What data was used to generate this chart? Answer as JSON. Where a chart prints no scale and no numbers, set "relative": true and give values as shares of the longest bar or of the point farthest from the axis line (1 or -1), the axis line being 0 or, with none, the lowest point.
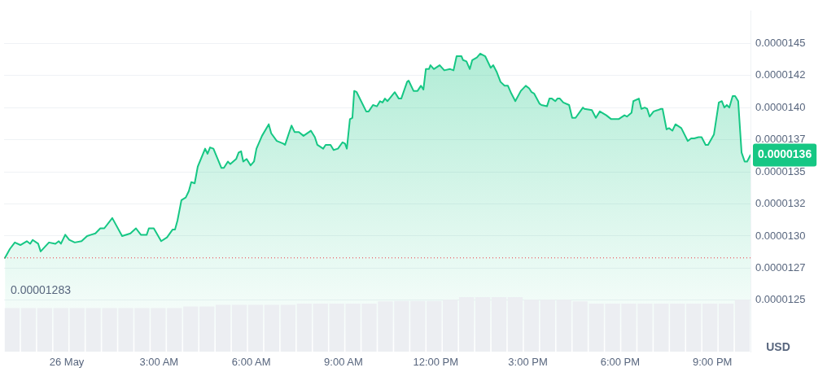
{
  "chart_data": [
    {
      "type": "area",
      "ylabel": "USD",
      "grid": "y",
      "marker": "none",
      "x": [
        -2.01,
        -1.85,
        -1.69,
        -1.51,
        -1.3,
        -1.19,
        -1.11,
        -0.93,
        -0.85,
        -0.58,
        -0.37,
        -0.26,
        -0.19,
        -0.05,
        0.08,
        0.26,
        0.48,
        0.66,
        0.79,
        0.93,
        1.09,
        1.22,
        1.48,
        1.8,
        2.07,
        2.25,
        2.41,
        2.6,
        2.67,
        2.83,
        3.07,
        3.26,
        3.44,
        3.52,
        3.6,
        3.73,
        3.87,
        3.97,
        4.05,
        4.16,
        4.26,
        4.5,
        4.58,
        4.66,
        4.77,
        5.03,
        5.11,
        5.24,
        5.32,
        5.51,
        5.59,
        5.67,
        5.74,
        5.85,
        5.98,
        6.09,
        6.17,
        6.35,
        6.57,
        6.65,
        6.83,
        7.04,
        7.1,
        7.31,
        7.41,
        7.55,
        7.7,
        7.94,
        8.07,
        8.15,
        8.34,
        8.42,
        8.58,
        8.68,
        8.82,
        8.97,
        9.05,
        9.11,
        9.21,
        9.29,
        9.35,
        9.43,
        9.74,
        9.82,
        9.96,
        10.09,
        10.19,
        10.27,
        10.35,
        10.43,
        10.67,
        10.8,
        10.88,
        11.07,
        11.12,
        11.28,
        11.41,
        11.52,
        11.6,
        11.68,
        11.78,
        11.83,
        11.94,
        12.13,
        12.28,
        12.47,
        12.58,
        12.68,
        12.84,
        12.89,
        13.0,
        13.11,
        13.19,
        13.34,
        13.45,
        13.61,
        13.79,
        13.87,
        13.98,
        14.11,
        14.24,
        14.35,
        14.46,
        14.59,
        14.77,
        14.93,
        15.04,
        15.12,
        15.2,
        15.38,
        15.44,
        15.62,
        15.7,
        15.78,
        15.89,
        15.96,
        16.04,
        16.15,
        16.34,
        16.44,
        16.55,
        16.79,
        16.84,
        17.08,
        17.21,
        17.34,
        17.55,
        17.71,
        17.95,
        18.14,
        18.22,
        18.37,
        18.43,
        18.61,
        18.69,
        18.8,
        18.88,
        18.96,
        19.09,
        19.22,
        19.33,
        19.38,
        19.51,
        19.59,
        19.7,
        19.8,
        19.99,
        20.2,
        20.31,
        20.41,
        20.55,
        20.65,
        20.78,
        20.86,
        21.05,
        21.21,
        21.31,
        21.39,
        21.47,
        21.55,
        21.66,
        21.74,
        21.84,
        21.95,
        22.05,
        22.13,
        22.24
      ],
      "series": [
        {
          "color": "#16c784",
          "values": [
            1.283e-05,
            1.29e-05,
            1.295e-05,
            1.293e-05,
            1.296e-05,
            1.294e-05,
            1.297e-05,
            1.294e-05,
            1.288e-05,
            1.295e-05,
            1.294e-05,
            1.296e-05,
            1.294e-05,
            1.301e-05,
            1.297e-05,
            1.295e-05,
            1.296e-05,
            1.3e-05,
            1.301e-05,
            1.302e-05,
            1.306e-05,
            1.306e-05,
            1.314e-05,
            1.3e-05,
            1.302e-05,
            1.306e-05,
            1.301e-05,
            1.301e-05,
            1.306e-05,
            1.306e-05,
            1.296e-05,
            1.299e-05,
            1.305e-05,
            1.305e-05,
            1.312e-05,
            1.328e-05,
            1.33e-05,
            1.335e-05,
            1.342e-05,
            1.341e-05,
            1.354e-05,
            1.368e-05,
            1.364e-05,
            1.369e-05,
            1.368e-05,
            1.353e-05,
            1.353e-05,
            1.358e-05,
            1.356e-05,
            1.36e-05,
            1.365e-05,
            1.366e-05,
            1.358e-05,
            1.36e-05,
            1.355e-05,
            1.358e-05,
            1.368e-05,
            1.378e-05,
            1.387e-05,
            1.38e-05,
            1.374e-05,
            1.372e-05,
            1.371e-05,
            1.386e-05,
            1.381e-05,
            1.381e-05,
            1.378e-05,
            1.382e-05,
            1.377e-05,
            1.371e-05,
            1.368e-05,
            1.371e-05,
            1.371e-05,
            1.367e-05,
            1.368e-05,
            1.373e-05,
            1.372e-05,
            1.368e-05,
            1.391e-05,
            1.392e-05,
            1.413e-05,
            1.412e-05,
            1.397e-05,
            1.397e-05,
            1.402e-05,
            1.401e-05,
            1.405e-05,
            1.404e-05,
            1.407e-05,
            1.405e-05,
            1.412e-05,
            1.407e-05,
            1.407e-05,
            1.42e-05,
            1.421e-05,
            1.413e-05,
            1.413e-05,
            1.417e-05,
            1.414e-05,
            1.43e-05,
            1.43e-05,
            1.433e-05,
            1.43e-05,
            1.433e-05,
            1.429e-05,
            1.43e-05,
            1.429e-05,
            1.44e-05,
            1.44e-05,
            1.437e-05,
            1.436e-05,
            1.43e-05,
            1.437e-05,
            1.439e-05,
            1.442e-05,
            1.44e-05,
            1.431e-05,
            1.433e-05,
            1.428e-05,
            1.42e-05,
            1.417e-05,
            1.417e-05,
            1.411e-05,
            1.405e-05,
            1.413e-05,
            1.417e-05,
            1.415e-05,
            1.412e-05,
            1.411e-05,
            1.403e-05,
            1.402e-05,
            1.401e-05,
            1.407e-05,
            1.407e-05,
            1.405e-05,
            1.407e-05,
            1.407e-05,
            1.404e-05,
            1.402e-05,
            1.392e-05,
            1.392e-05,
            1.4e-05,
            1.399e-05,
            1.398e-05,
            1.392e-05,
            1.397e-05,
            1.394e-05,
            1.391e-05,
            1.391e-05,
            1.394e-05,
            1.393e-05,
            1.396e-05,
            1.405e-05,
            1.407e-05,
            1.399e-05,
            1.4e-05,
            1.399e-05,
            1.393e-05,
            1.397e-05,
            1.398e-05,
            1.399e-05,
            1.399e-05,
            1.383e-05,
            1.384e-05,
            1.382e-05,
            1.387e-05,
            1.384e-05,
            1.374e-05,
            1.376e-05,
            1.376e-05,
            1.377e-05,
            1.377e-05,
            1.371e-05,
            1.371e-05,
            1.379e-05,
            1.404e-05,
            1.405e-05,
            1.4e-05,
            1.402e-05,
            1.4e-05,
            1.409e-05,
            1.409e-05,
            1.405e-05,
            1.365e-05,
            1.358e-05,
            1.358e-05,
            1.363e-05
          ]
        }
      ],
      "xlim": [
        -2.04,
        22.24
      ],
      "xticks": [
        {
          "value": 0,
          "label": "26 May"
        },
        {
          "value": 3,
          "label": "3:00 AM"
        },
        {
          "value": 6,
          "label": "6:00 AM"
        },
        {
          "value": 9,
          "label": "9:00 AM"
        },
        {
          "value": 12,
          "label": "12:00 PM"
        },
        {
          "value": 15,
          "label": "3:00 PM"
        },
        {
          "value": 18,
          "label": "6:00 PM"
        },
        {
          "value": 21,
          "label": "9:00 PM"
        }
      ],
      "ylim": [
        1.21e-05,
        1.475e-05
      ],
      "yticks": [
        {
          "value": 1.25e-05,
          "label": "0.0000125"
        },
        {
          "value": 1.275e-05,
          "label": "0.0000127"
        },
        {
          "value": 1.3e-05,
          "label": "0.0000130"
        },
        {
          "value": 1.325e-05,
          "label": "0.0000132"
        },
        {
          "value": 1.35e-05,
          "label": "0.0000135"
        },
        {
          "value": 1.375e-05,
          "label": "0.0000137"
        },
        {
          "value": 1.4e-05,
          "label": "0.0000140"
        },
        {
          "value": 1.425e-05,
          "label": "0.0000142"
        },
        {
          "value": 1.45e-05,
          "label": "0.0000145"
        }
      ],
      "ref_lines": [
        {
          "axis": "y",
          "value": 1.283e-05,
          "label": "0.00001283",
          "color": "#ea3943",
          "line_style": "dotted"
        }
      ],
      "annotations": [
        {
          "text": "0.0000136",
          "x": 22.24,
          "y": 1.363e-05
        }
      ]
    },
    {
      "type": "bar",
      "relative": true,
      "tick_labels": false,
      "color": "#eceef2",
      "categories": [
        null,
        null,
        null,
        null,
        null,
        null,
        null,
        null,
        null,
        null,
        null,
        null,
        null,
        null,
        null,
        null,
        null,
        null,
        null,
        null,
        null,
        null,
        null,
        null,
        null,
        null,
        null,
        null,
        null,
        null,
        null,
        null,
        null,
        null,
        null,
        null,
        null,
        null,
        null,
        null,
        null,
        null,
        null,
        null,
        null,
        null
      ],
      "values": [
        0.8,
        0.8,
        0.8,
        0.8,
        0.8,
        0.8,
        0.8,
        0.8,
        0.8,
        0.8,
        0.8,
        0.83,
        0.83,
        0.86,
        0.86,
        0.86,
        0.86,
        0.86,
        0.88,
        0.88,
        0.88,
        0.88,
        0.88,
        0.92,
        0.93,
        0.93,
        0.93,
        0.95,
        1,
        1,
        1,
        1,
        0.95,
        0.95,
        0.95,
        0.92,
        0.88,
        0.88,
        0.88,
        0.88,
        0.88,
        0.88,
        0.88,
        0.88,
        0.88,
        0.95
      ]
    }
  ]
}
